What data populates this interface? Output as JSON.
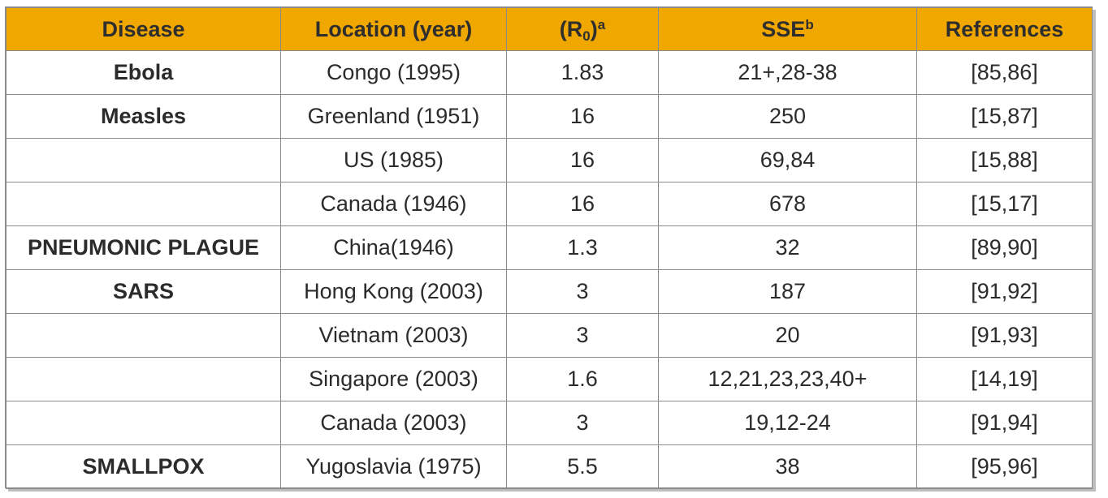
{
  "headers": {
    "disease": "Disease",
    "location": "Location (year)",
    "r0_open": "(R",
    "r0_sub": "0",
    "r0_close": ")",
    "r0_sup": "a",
    "sse": "SSE",
    "sse_sup": "b",
    "references": "References"
  },
  "rows": [
    {
      "disease": "Ebola",
      "location": "Congo (1995)",
      "r0": "1.83",
      "sse": "21+,28-38",
      "references": "[85,86]"
    },
    {
      "disease": "Measles",
      "location": "Greenland (1951)",
      "r0": "16",
      "sse": "250",
      "references": "[15,87]"
    },
    {
      "disease": "",
      "location": "US (1985)",
      "r0": "16",
      "sse": "69,84",
      "references": "[15,88]"
    },
    {
      "disease": "",
      "location": "Canada (1946)",
      "r0": "16",
      "sse": "678",
      "references": "[15,17]"
    },
    {
      "disease": "PNEUMONIC PLAGUE",
      "location": "China(1946)",
      "r0": "1.3",
      "sse": "32",
      "references": "[89,90]"
    },
    {
      "disease": "SARS",
      "location": "Hong Kong (2003)",
      "r0": "3",
      "sse": "187",
      "references": "[91,92]"
    },
    {
      "disease": "",
      "location": "Vietnam (2003)",
      "r0": "3",
      "sse": "20",
      "references": "[91,93]"
    },
    {
      "disease": "",
      "location": "Singapore (2003)",
      "r0": "1.6",
      "sse": "12,21,23,23,40+",
      "references": "[14,19]"
    },
    {
      "disease": "",
      "location": "Canada (2003)",
      "r0": "3",
      "sse": "19,12-24",
      "references": "[91,94]"
    },
    {
      "disease": "SMALLPOX",
      "location": "Yugoslavia (1975)",
      "r0": "5.5",
      "sse": "38",
      "references": "[95,96]"
    }
  ],
  "colors": {
    "header_bg": "#f0a800",
    "border": "#8a8a8a",
    "text": "#2b2b2b"
  }
}
